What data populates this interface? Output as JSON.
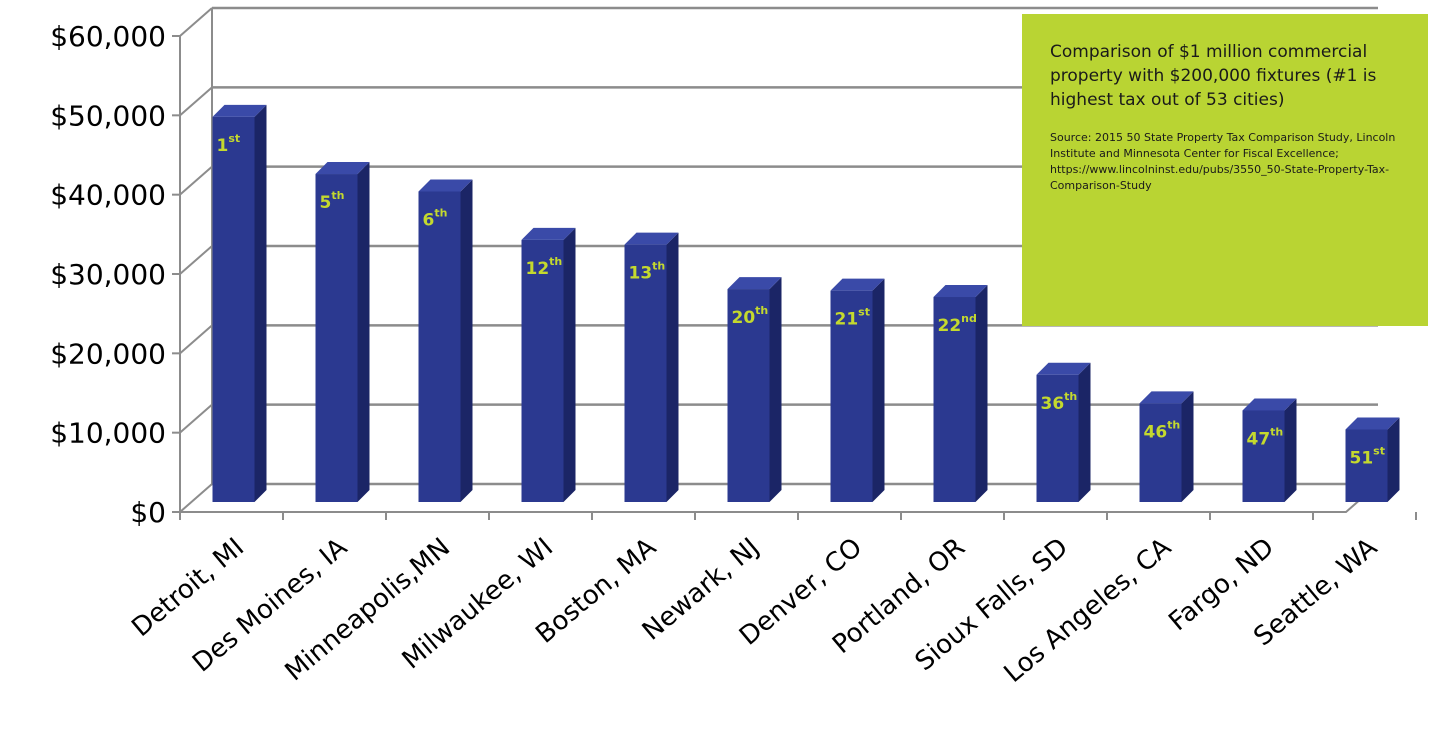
{
  "chart_data": {
    "type": "bar",
    "title": "",
    "xlabel": "",
    "ylabel": "",
    "ylim": [
      0,
      60000
    ],
    "yticks": [
      "$0",
      "$10,000",
      "$20,000",
      "$30,000",
      "$40,000",
      "$50,000",
      "$60,000"
    ],
    "grid": true,
    "style": "3d",
    "categories": [
      "Detroit, MI",
      "Des Moines, IA",
      "Minneapolis,MN",
      "Milwaukee, WI",
      "Boston, MA",
      "Newark, NJ",
      "Denver, CO",
      "Portland, OR",
      "Sioux Falls, SD",
      "Los Angeles, CA",
      "Fargo, ND",
      "Seattle, WA"
    ],
    "values": [
      49800,
      42600,
      40400,
      34300,
      33700,
      28100,
      27900,
      27100,
      17300,
      13700,
      12800,
      10400
    ],
    "ranks": [
      {
        "num": "1",
        "suffix": "st"
      },
      {
        "num": "5",
        "suffix": "th"
      },
      {
        "num": "6",
        "suffix": "th"
      },
      {
        "num": "12",
        "suffix": "th"
      },
      {
        "num": "13",
        "suffix": "th"
      },
      {
        "num": "20",
        "suffix": "th"
      },
      {
        "num": "21",
        "suffix": "st"
      },
      {
        "num": "22",
        "suffix": "nd"
      },
      {
        "num": "36",
        "suffix": "th"
      },
      {
        "num": "46",
        "suffix": "th"
      },
      {
        "num": "47",
        "suffix": "th"
      },
      {
        "num": "51",
        "suffix": "st"
      }
    ],
    "colors": {
      "bar_front": "#2b3990",
      "bar_side": "#1b2566",
      "bar_top": "#3a4aa8",
      "rank_text": "#c4d92e",
      "grid": "#8c8c8c"
    }
  },
  "annotation": {
    "main": "Comparison of $1 million commercial property with $200,000 fixtures (#1 is highest tax out of 53 cities)",
    "source": "Source:  2015 50 State Property Tax Comparison Study, Lincoln Institute and Minnesota Center for Fiscal Excellence; https://www.lincolninst.edu/pubs/3550_50-State-Property-Tax-Comparison-Study",
    "background": "#b9d433"
  }
}
